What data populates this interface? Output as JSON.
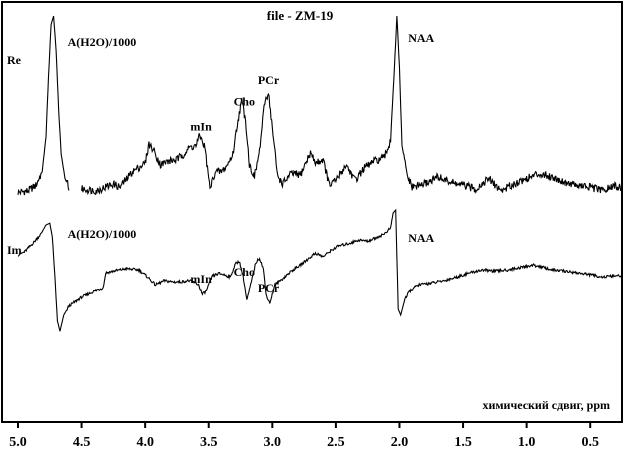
{
  "chart_data": {
    "type": "line",
    "title": "file - ZM-19",
    "xlabel": "химический сдвиг, ppm",
    "ylabel": "",
    "xlim": [
      5.0,
      0.25
    ],
    "x_reversed": true,
    "tick_labels": [
      "5.0",
      "4.5",
      "4.0",
      "3.5",
      "3.0",
      "2.5",
      "2.0",
      "1.5",
      "1.0",
      "0.5"
    ],
    "series": [
      {
        "name": "Re",
        "peak_labels": [
          {
            "text": "A(H2O)/1000",
            "x": 4.72
          },
          {
            "text": "mIn",
            "x": 3.56
          },
          {
            "text": "Cho",
            "x": 3.22
          },
          {
            "text": "PCr",
            "x": 3.03
          },
          {
            "text": "NAA",
            "x": 2.01
          }
        ],
        "points": [
          [
            5.0,
            -0.02
          ],
          [
            4.92,
            -0.01
          ],
          [
            4.86,
            0.02
          ],
          [
            4.81,
            0.1
          ],
          [
            4.78,
            0.3
          ],
          [
            4.76,
            0.65
          ],
          [
            4.74,
            0.95
          ],
          [
            4.72,
            1.0
          ],
          [
            4.7,
            0.8
          ],
          [
            4.68,
            0.45
          ],
          [
            4.66,
            0.2
          ],
          [
            4.63,
            0.06
          ],
          [
            4.6,
            0.01
          ],
          [
            4.5,
            0.0
          ],
          [
            4.38,
            -0.01
          ],
          [
            4.25,
            0.03
          ],
          [
            4.2,
            0.01
          ],
          [
            4.1,
            0.1
          ],
          [
            4.0,
            0.15
          ],
          [
            3.97,
            0.26
          ],
          [
            3.93,
            0.22
          ],
          [
            3.88,
            0.14
          ],
          [
            3.82,
            0.16
          ],
          [
            3.75,
            0.17
          ],
          [
            3.7,
            0.2
          ],
          [
            3.65,
            0.24
          ],
          [
            3.6,
            0.25
          ],
          [
            3.57,
            0.31
          ],
          [
            3.53,
            0.24
          ],
          [
            3.49,
            0.0
          ],
          [
            3.45,
            0.1
          ],
          [
            3.4,
            0.1
          ],
          [
            3.36,
            0.13
          ],
          [
            3.31,
            0.2
          ],
          [
            3.27,
            0.4
          ],
          [
            3.24,
            0.51
          ],
          [
            3.21,
            0.4
          ],
          [
            3.18,
            0.14
          ],
          [
            3.14,
            0.07
          ],
          [
            3.1,
            0.22
          ],
          [
            3.06,
            0.5
          ],
          [
            3.03,
            0.56
          ],
          [
            3.0,
            0.35
          ],
          [
            2.96,
            0.08
          ],
          [
            2.92,
            0.03
          ],
          [
            2.85,
            0.09
          ],
          [
            2.78,
            0.08
          ],
          [
            2.7,
            0.21
          ],
          [
            2.66,
            0.15
          ],
          [
            2.6,
            0.17
          ],
          [
            2.55,
            0.02
          ],
          [
            2.5,
            0.05
          ],
          [
            2.42,
            0.14
          ],
          [
            2.35,
            0.05
          ],
          [
            2.28,
            0.12
          ],
          [
            2.2,
            0.16
          ],
          [
            2.12,
            0.18
          ],
          [
            2.07,
            0.28
          ],
          [
            2.04,
            0.7
          ],
          [
            2.02,
            1.0
          ],
          [
            2.0,
            0.7
          ],
          [
            1.98,
            0.25
          ],
          [
            1.94,
            0.08
          ],
          [
            1.9,
            0.01
          ],
          [
            1.8,
            0.03
          ],
          [
            1.7,
            0.07
          ],
          [
            1.6,
            0.04
          ],
          [
            1.5,
            0.02
          ],
          [
            1.4,
            0.0
          ],
          [
            1.3,
            0.06
          ],
          [
            1.2,
            -0.01
          ],
          [
            1.1,
            0.03
          ],
          [
            1.0,
            0.06
          ],
          [
            0.9,
            0.09
          ],
          [
            0.8,
            0.07
          ],
          [
            0.7,
            0.04
          ],
          [
            0.6,
            0.02
          ],
          [
            0.5,
            0.01
          ],
          [
            0.4,
            -0.01
          ],
          [
            0.3,
            0.02
          ],
          [
            0.25,
            0.0
          ]
        ]
      },
      {
        "name": "Im",
        "peak_labels": [
          {
            "text": "A(H2O)/1000",
            "x": 4.72
          },
          {
            "text": "mIn",
            "x": 3.56
          },
          {
            "text": "Cho",
            "x": 3.22
          },
          {
            "text": "PCr",
            "x": 3.03
          },
          {
            "text": "NAA",
            "x": 2.01
          }
        ],
        "points": [
          [
            5.0,
            0.55
          ],
          [
            4.95,
            0.6
          ],
          [
            4.88,
            0.75
          ],
          [
            4.82,
            0.9
          ],
          [
            4.78,
            1.05
          ],
          [
            4.75,
            1.08
          ],
          [
            4.73,
            0.85
          ],
          [
            4.71,
            0.2
          ],
          [
            4.69,
            -0.55
          ],
          [
            4.67,
            -0.72
          ],
          [
            4.64,
            -0.45
          ],
          [
            4.6,
            -0.3
          ],
          [
            4.5,
            -0.15
          ],
          [
            4.4,
            -0.05
          ],
          [
            4.33,
            0.0
          ],
          [
            4.31,
            0.25
          ],
          [
            4.25,
            0.28
          ],
          [
            4.15,
            0.32
          ],
          [
            4.05,
            0.3
          ],
          [
            3.98,
            0.18
          ],
          [
            3.92,
            0.05
          ],
          [
            3.85,
            0.12
          ],
          [
            3.78,
            0.1
          ],
          [
            3.72,
            0.1
          ],
          [
            3.66,
            0.12
          ],
          [
            3.62,
            0.1
          ],
          [
            3.58,
            0.05
          ],
          [
            3.55,
            -0.1
          ],
          [
            3.52,
            -0.05
          ],
          [
            3.47,
            0.2
          ],
          [
            3.42,
            0.24
          ],
          [
            3.38,
            0.22
          ],
          [
            3.33,
            0.18
          ],
          [
            3.29,
            0.4
          ],
          [
            3.26,
            0.45
          ],
          [
            3.23,
            0.2
          ],
          [
            3.2,
            -0.2
          ],
          [
            3.17,
            0.05
          ],
          [
            3.13,
            0.42
          ],
          [
            3.1,
            0.5
          ],
          [
            3.07,
            0.32
          ],
          [
            3.05,
            -0.1
          ],
          [
            3.02,
            -0.25
          ],
          [
            2.98,
            0.05
          ],
          [
            2.92,
            0.15
          ],
          [
            2.85,
            0.28
          ],
          [
            2.78,
            0.38
          ],
          [
            2.72,
            0.48
          ],
          [
            2.66,
            0.58
          ],
          [
            2.6,
            0.52
          ],
          [
            2.54,
            0.62
          ],
          [
            2.48,
            0.7
          ],
          [
            2.4,
            0.74
          ],
          [
            2.32,
            0.8
          ],
          [
            2.25,
            0.78
          ],
          [
            2.18,
            0.84
          ],
          [
            2.12,
            0.9
          ],
          [
            2.07,
            1.0
          ],
          [
            2.05,
            1.25
          ],
          [
            2.03,
            1.3
          ],
          [
            2.02,
            0.5
          ],
          [
            2.01,
            -0.35
          ],
          [
            1.99,
            -0.45
          ],
          [
            1.96,
            -0.2
          ],
          [
            1.92,
            -0.05
          ],
          [
            1.85,
            0.05
          ],
          [
            1.75,
            0.08
          ],
          [
            1.65,
            0.12
          ],
          [
            1.55,
            0.18
          ],
          [
            1.45,
            0.25
          ],
          [
            1.35,
            0.3
          ],
          [
            1.25,
            0.28
          ],
          [
            1.15,
            0.3
          ],
          [
            1.05,
            0.34
          ],
          [
            0.95,
            0.38
          ],
          [
            0.9,
            0.36
          ],
          [
            0.8,
            0.3
          ],
          [
            0.7,
            0.28
          ],
          [
            0.6,
            0.25
          ],
          [
            0.5,
            0.22
          ],
          [
            0.4,
            0.18
          ],
          [
            0.3,
            0.2
          ],
          [
            0.25,
            0.2
          ]
        ]
      }
    ]
  }
}
